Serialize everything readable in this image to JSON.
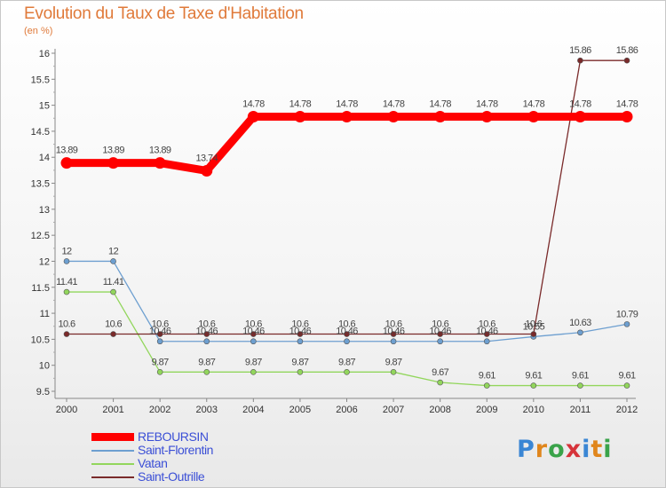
{
  "title": "Evolution du Taux de Taxe d'Habitation",
  "subtitle": "(en %)",
  "logo": {
    "text": "Proxiti",
    "letter_colors": [
      "#3a86d4",
      "#e0861c",
      "#3aa34a",
      "#d6333a",
      "#3a86d4",
      "#e0861c",
      "#3aa34a"
    ]
  },
  "chart_data": {
    "type": "line",
    "x": [
      "2000",
      "2001",
      "2002",
      "2003",
      "2004",
      "2005",
      "2006",
      "2007",
      "2008",
      "2009",
      "2010",
      "2011",
      "2012"
    ],
    "ylim": [
      9.5,
      16
    ],
    "yticks": [
      "9.5",
      "10",
      "10.5",
      "11",
      "11.5",
      "12",
      "12.5",
      "13",
      "13.5",
      "14",
      "14.5",
      "15",
      "15.5",
      "16"
    ],
    "grid": false,
    "legend_position": "bottom-left",
    "series": [
      {
        "name": "REBOURSIN",
        "color": "#ff0000",
        "width": 9,
        "values": [
          13.89,
          13.89,
          13.89,
          13.74,
          14.78,
          14.78,
          14.78,
          14.78,
          14.78,
          14.78,
          14.78,
          14.78,
          14.78
        ],
        "labels": [
          "13.89",
          "13.89",
          "13.89",
          "13.74",
          "14.78",
          "14.78",
          "14.78",
          "14.78",
          "14.78",
          "14.78",
          "14.78",
          "14.78",
          "14.78"
        ]
      },
      {
        "name": "Saint-Florentin",
        "color": "#6d9fd0",
        "width": 1.3,
        "values": [
          12,
          12,
          10.46,
          10.46,
          10.46,
          10.46,
          10.46,
          10.46,
          10.46,
          10.46,
          10.55,
          10.63,
          10.79
        ],
        "labels": [
          "12",
          "12",
          "10.46",
          "10.46",
          "10.46",
          "10.46",
          "10.46",
          "10.46",
          "10.46",
          "10.46",
          "10.55",
          "10.63",
          "10.79"
        ]
      },
      {
        "name": "Vatan",
        "color": "#92d65c",
        "width": 1.3,
        "values": [
          11.41,
          11.41,
          9.87,
          9.87,
          9.87,
          9.87,
          9.87,
          9.87,
          9.67,
          9.61,
          9.61,
          9.61,
          9.61
        ],
        "labels": [
          "11.41",
          "11.41",
          "9.87",
          "9.87",
          "9.87",
          "9.87",
          "9.87",
          "9.87",
          "9.67",
          "9.61",
          "9.61",
          "9.61",
          "9.61"
        ]
      },
      {
        "name": "Saint-Outrille",
        "color": "#7a2a2a",
        "width": 1.3,
        "values": [
          10.6,
          10.6,
          10.6,
          10.6,
          10.6,
          10.6,
          10.6,
          10.6,
          10.6,
          10.6,
          10.6,
          15.86,
          15.86
        ],
        "labels": [
          "10.6",
          "10.6",
          "10.6",
          "10.6",
          "10.6",
          "10.6",
          "10.6",
          "10.6",
          "10.6",
          "10.6",
          "10.6",
          "15.86",
          "15.86"
        ]
      }
    ]
  }
}
